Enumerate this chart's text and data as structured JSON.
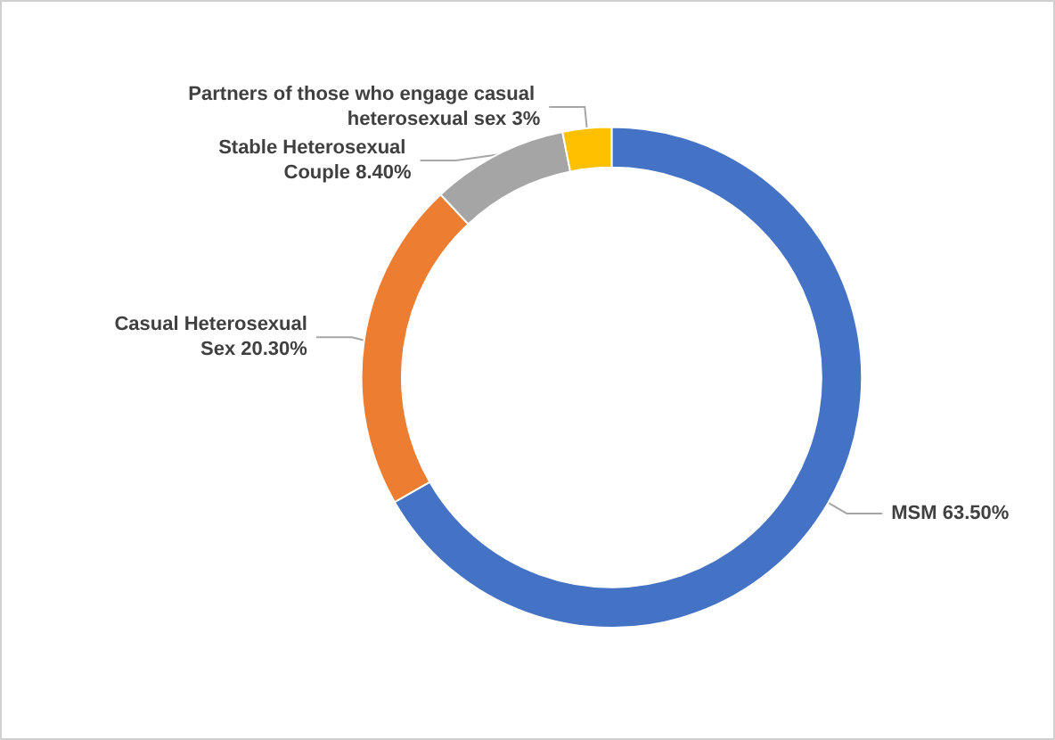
{
  "chart_data": {
    "type": "donut",
    "categories": [
      "MSM",
      "Casual Heterosexual Sex",
      "Stable Heterosexual Couple",
      "Partners of those who engage casual heterosexual sex"
    ],
    "values": [
      63.5,
      20.3,
      8.4,
      3
    ],
    "value_labels": [
      "63.50%",
      "20.30%",
      "8.40%",
      "3%"
    ],
    "colors": [
      "#4472c4",
      "#ed7d31",
      "#a5a5a5",
      "#ffc000"
    ],
    "legend": false
  }
}
